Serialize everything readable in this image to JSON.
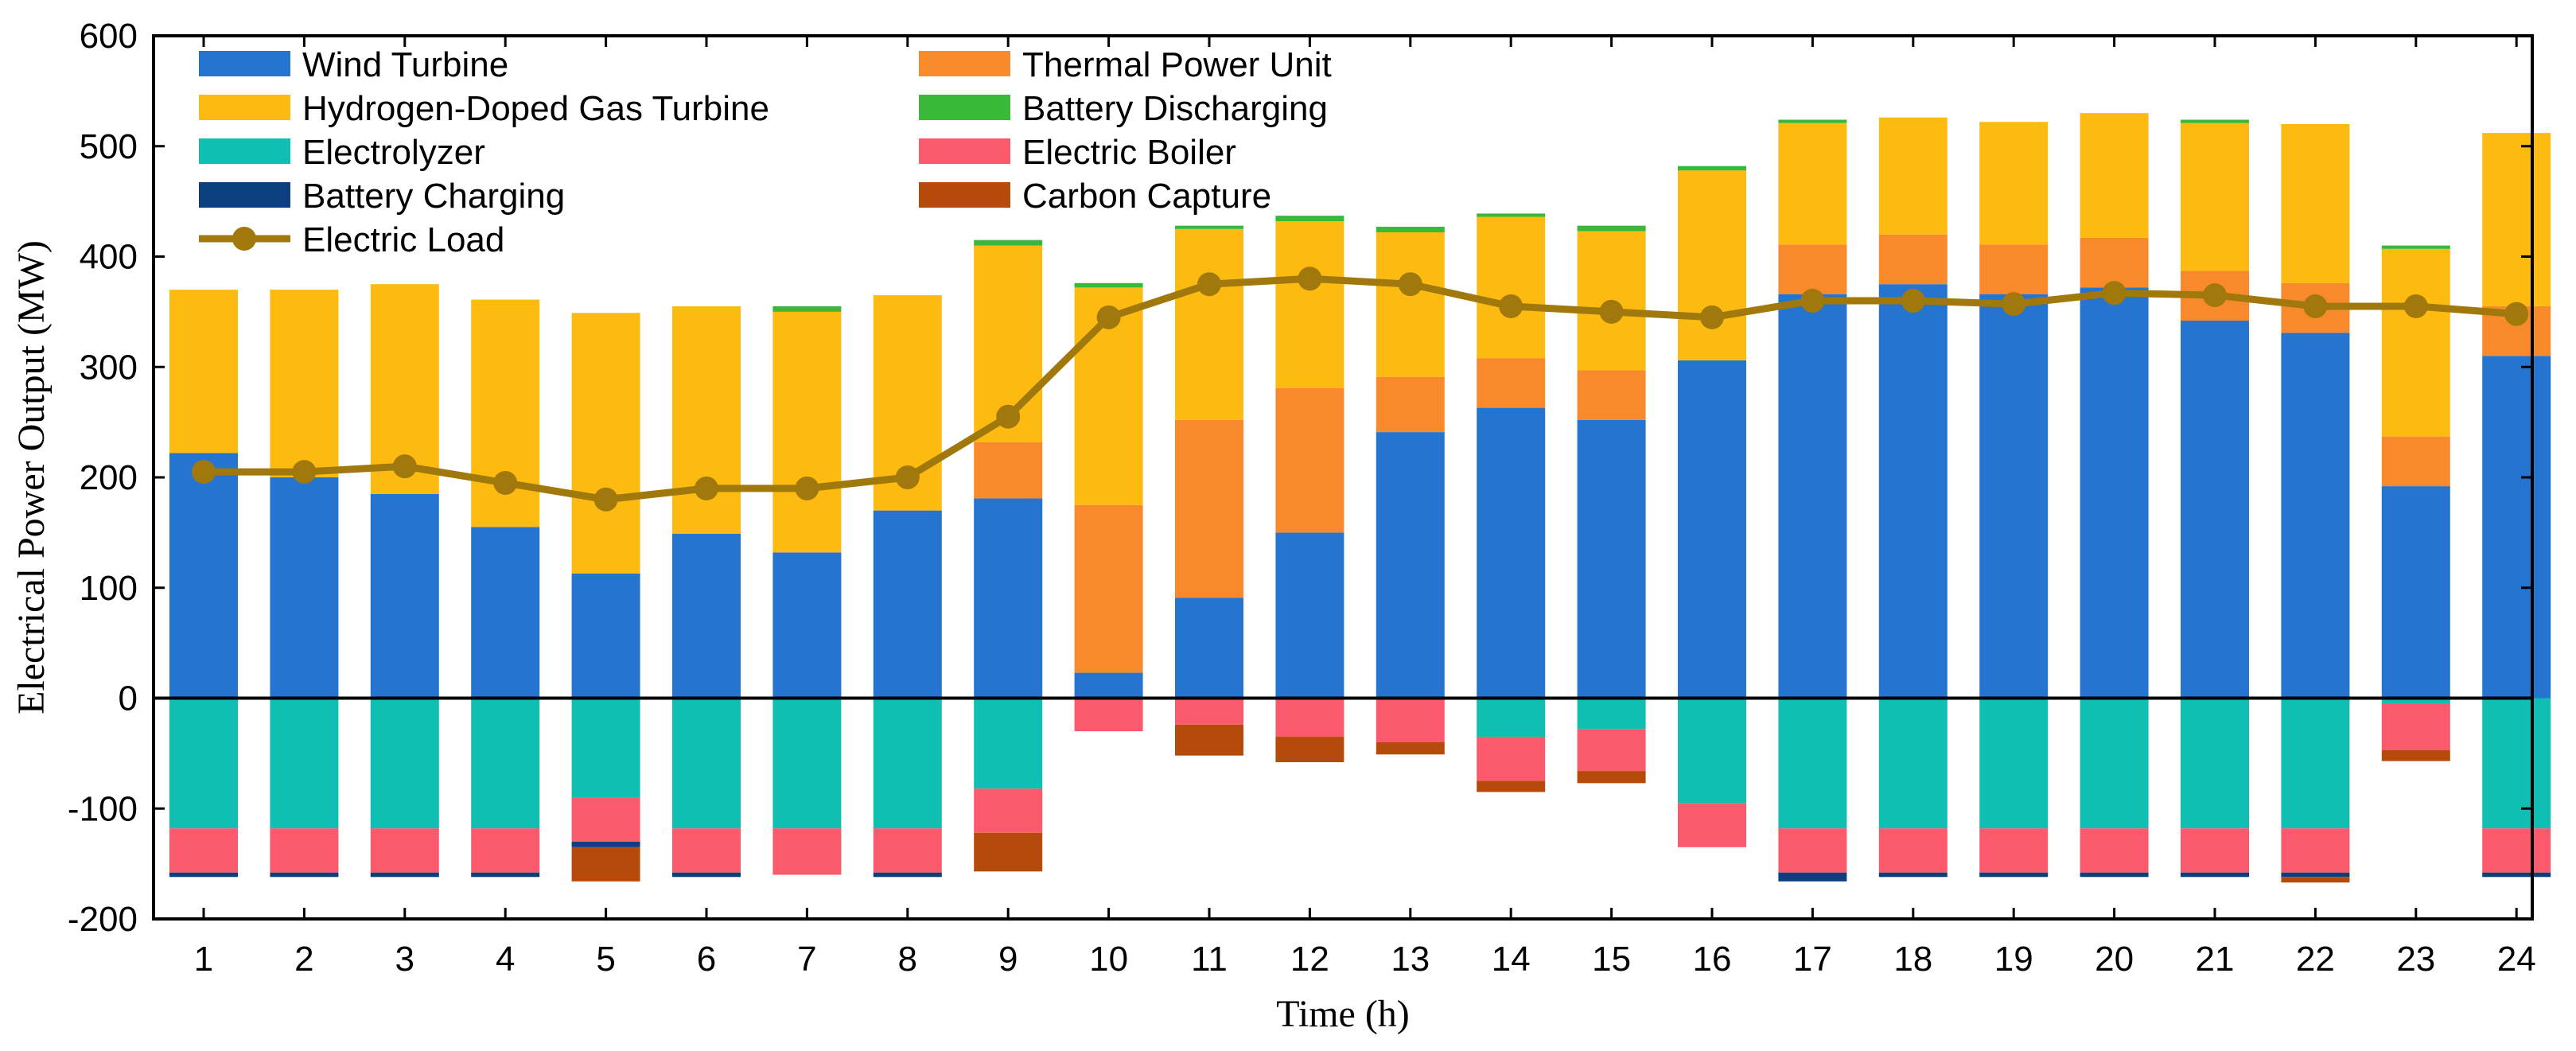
{
  "chart_data": {
    "type": "bar",
    "stacked": true,
    "title": "",
    "xlabel": "Time (h)",
    "ylabel": "Electrical Power Output (MW)",
    "ylim": [
      -200,
      600
    ],
    "yticks": [
      -200,
      -100,
      0,
      100,
      200,
      300,
      400,
      500,
      600
    ],
    "categories": [
      "1",
      "2",
      "3",
      "4",
      "5",
      "6",
      "7",
      "8",
      "9",
      "10",
      "11",
      "12",
      "13",
      "14",
      "15",
      "16",
      "17",
      "18",
      "19",
      "20",
      "21",
      "22",
      "23",
      "24"
    ],
    "grid": false,
    "legend_position": "top-left",
    "series": [
      {
        "name": "Wind Turbine",
        "color": "#2474d0",
        "values": [
          222,
          200,
          185,
          155,
          113,
          149,
          132,
          170,
          181,
          23,
          91,
          150,
          241,
          263,
          252,
          306,
          366,
          375,
          366,
          372,
          342,
          331,
          192,
          310
        ]
      },
      {
        "name": "Thermal Power Unit",
        "color": "#f88a2b",
        "values": [
          0,
          0,
          0,
          0,
          0,
          0,
          0,
          0,
          51,
          152,
          161,
          131,
          50,
          45,
          45,
          0,
          45,
          45,
          45,
          45,
          45,
          45,
          45,
          45
        ]
      },
      {
        "name": "Hydrogen-Doped Gas Turbine",
        "color": "#fdbb11",
        "values": [
          148,
          170,
          190,
          206,
          236,
          206,
          218,
          195,
          178,
          197,
          173,
          151,
          131,
          128,
          126,
          172,
          110,
          106,
          111,
          113,
          134,
          144,
          170,
          157
        ]
      },
      {
        "name": "Battery Discharging",
        "color": "#39b83a",
        "values": [
          0,
          0,
          0,
          0,
          0,
          0,
          5,
          0,
          5,
          4,
          3,
          5,
          5,
          3,
          5,
          4,
          3,
          0,
          0,
          0,
          3,
          0,
          3,
          0
        ]
      },
      {
        "name": "Electrolyzer",
        "color": "#0fbfb1",
        "values": [
          -118,
          -118,
          -118,
          -118,
          -90,
          -118,
          -118,
          -118,
          -82,
          0,
          0,
          0,
          0,
          -35,
          -28,
          -95,
          -118,
          -118,
          -118,
          -118,
          -118,
          -118,
          -5,
          -118
        ]
      },
      {
        "name": "Electric Boiler",
        "color": "#fb5a6c",
        "values": [
          -40,
          -40,
          -40,
          -40,
          -40,
          -40,
          -42,
          -40,
          -40,
          -30,
          -24,
          -35,
          -40,
          -40,
          -38,
          -40,
          -40,
          -40,
          -40,
          -40,
          -40,
          -40,
          -42,
          -40
        ]
      },
      {
        "name": "Battery Charging",
        "color": "#0b3f7e",
        "values": [
          -4,
          -4,
          -4,
          -4,
          -5,
          -4,
          0,
          -4,
          0,
          0,
          0,
          0,
          0,
          0,
          0,
          0,
          -8,
          -4,
          -4,
          -4,
          -4,
          -4,
          0,
          -4
        ]
      },
      {
        "name": "Carbon Capture",
        "color": "#b54a0a",
        "values": [
          0,
          0,
          0,
          0,
          -31,
          0,
          0,
          0,
          -35,
          0,
          -28,
          -23,
          -11,
          -10,
          -11,
          0,
          0,
          0,
          0,
          0,
          0,
          -5,
          -10,
          0
        ]
      }
    ],
    "line_series": [
      {
        "name": "Electric Load",
        "color": "#a0780c",
        "values": [
          205,
          205,
          210,
          195,
          180,
          190,
          190,
          200,
          255,
          345,
          375,
          380,
          375,
          355,
          350,
          345,
          360,
          360,
          357,
          367,
          365,
          355,
          355,
          348
        ]
      }
    ],
    "legend": [
      {
        "name": "Wind Turbine",
        "color": "#2474d0",
        "kind": "bar"
      },
      {
        "name": "Thermal Power Unit",
        "color": "#f88a2b",
        "kind": "bar"
      },
      {
        "name": "Hydrogen-Doped Gas Turbine",
        "color": "#fdbb11",
        "kind": "bar"
      },
      {
        "name": "Battery Discharging",
        "color": "#39b83a",
        "kind": "bar"
      },
      {
        "name": "Electrolyzer",
        "color": "#0fbfb1",
        "kind": "bar"
      },
      {
        "name": "Electric Boiler",
        "color": "#fb5a6c",
        "kind": "bar"
      },
      {
        "name": "Battery Charging",
        "color": "#0b3f7e",
        "kind": "bar"
      },
      {
        "name": "Carbon Capture",
        "color": "#b54a0a",
        "kind": "bar"
      },
      {
        "name": "Electric Load",
        "color": "#a0780c",
        "kind": "line"
      }
    ]
  }
}
